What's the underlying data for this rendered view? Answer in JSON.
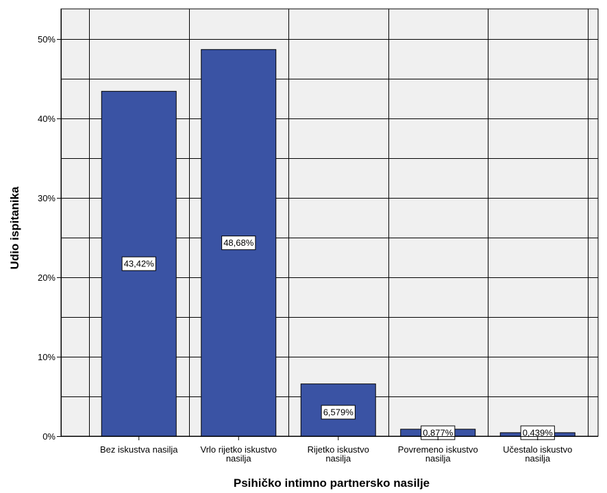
{
  "chart_data": {
    "type": "bar",
    "categories": [
      [
        "Bez iskustva nasilja"
      ],
      [
        "Vrlo rijetko iskustvo",
        "nasilja"
      ],
      [
        "Rijetko iskustvo",
        "nasilja"
      ],
      [
        "Povremeno iskustvo",
        "nasilja"
      ],
      [
        "Učestalo iskustvo",
        "nasilja"
      ]
    ],
    "values": [
      43.42,
      48.68,
      6.579,
      0.877,
      0.439
    ],
    "data_labels": [
      "43,42%",
      "48,68%",
      "6,579%",
      "0,877%",
      "0,439%"
    ],
    "xlabel": "Psihičko intimno partnersko nasilje",
    "ylabel": "Udio ispitanika",
    "ylim": [
      0,
      50
    ],
    "y_ticks": [
      0,
      10,
      20,
      30,
      40,
      50
    ],
    "y_tick_labels": [
      "0%",
      "10%",
      "20%",
      "30%",
      "40%",
      "50%"
    ],
    "grid": true,
    "colors": {
      "bar": "#3a53a4",
      "plot_background": "#f0f0f0",
      "grid": "#000000"
    }
  }
}
